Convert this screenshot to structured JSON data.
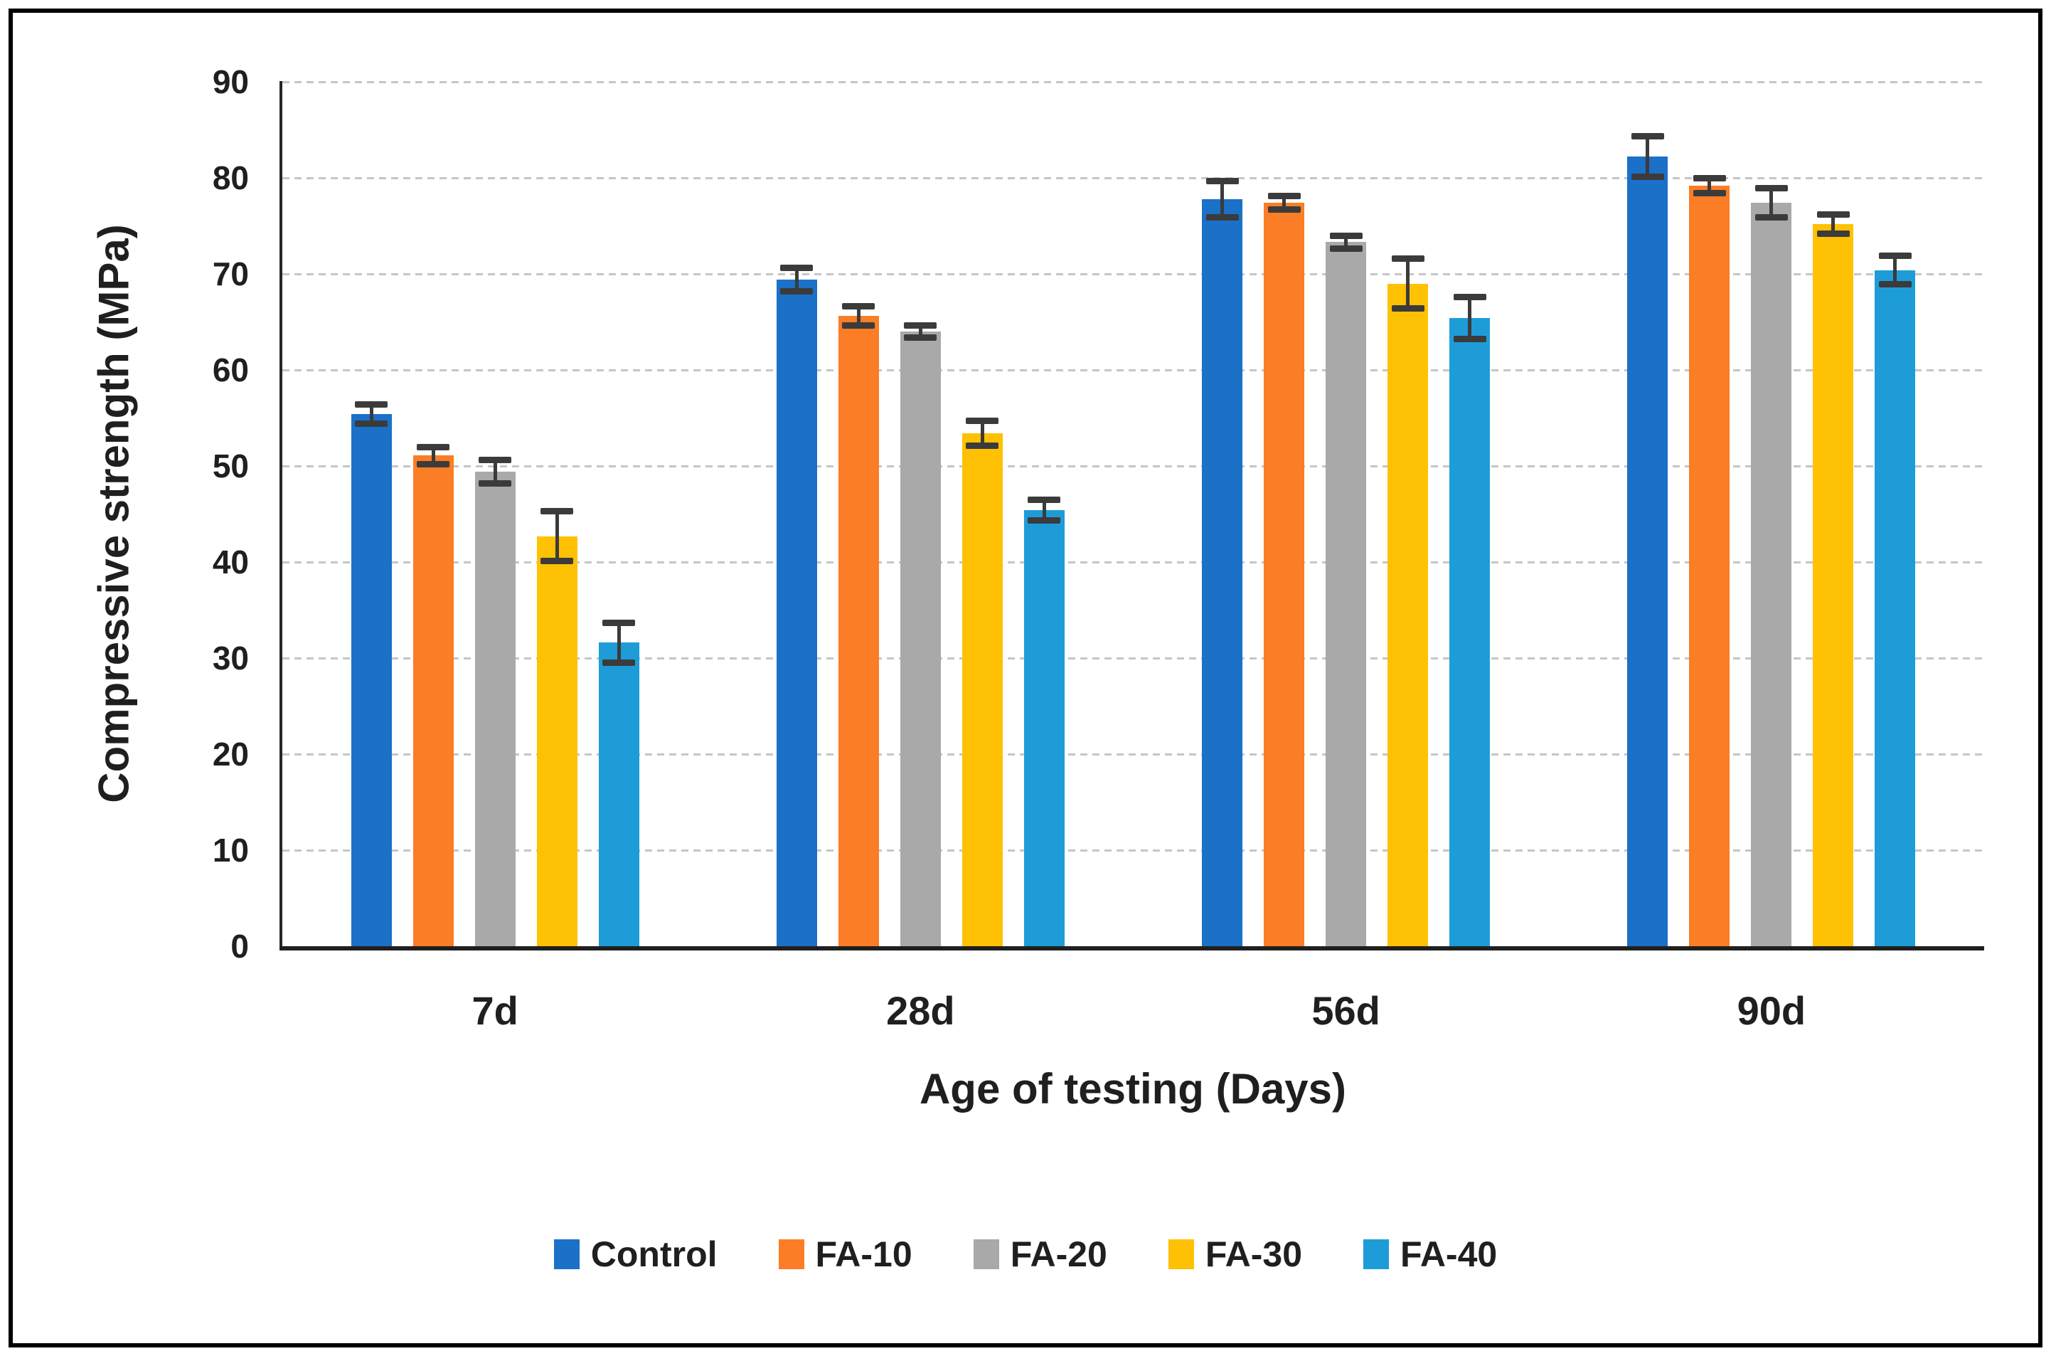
{
  "figure": {
    "y_axis_title": "Compressive strength (MPa)",
    "x_axis_title": "Age of testing (Days)",
    "y_tick_labels": [
      "0",
      "10",
      "20",
      "30",
      "40",
      "50",
      "60",
      "70",
      "80",
      "90"
    ]
  },
  "chart_data": {
    "type": "bar",
    "title": "",
    "xlabel": "Age of testing (Days)",
    "ylabel": "Compressive strength (MPa)",
    "ylim": [
      0,
      90
    ],
    "ytick_step": 10,
    "grid": "horizontal-dashed",
    "legend_position": "bottom",
    "categories": [
      "7d",
      "28d",
      "56d",
      "90d"
    ],
    "series": [
      {
        "name": "Control",
        "color": "#1B70C8",
        "pattern": "solid",
        "values": [
          55.4,
          69.4,
          77.8,
          82.2
        ],
        "errors": [
          1.0,
          1.2,
          1.9,
          2.1
        ]
      },
      {
        "name": "FA-10",
        "color": "#FB7D25",
        "pattern": "solid",
        "values": [
          51.1,
          65.6,
          77.4,
          79.2
        ],
        "errors": [
          0.9,
          1.0,
          0.7,
          0.8
        ]
      },
      {
        "name": "FA-20",
        "color": "#A9A9A9",
        "pattern": "dotted",
        "values": [
          49.4,
          64.0,
          73.3,
          77.4
        ],
        "errors": [
          1.2,
          0.6,
          0.7,
          1.5
        ]
      },
      {
        "name": "FA-30",
        "color": "#FFC103",
        "pattern": "solid",
        "values": [
          42.7,
          53.4,
          69.0,
          75.2
        ],
        "errors": [
          2.6,
          1.3,
          2.6,
          1.0
        ]
      },
      {
        "name": "FA-40",
        "color": "#1E9CD8",
        "pattern": "solid",
        "values": [
          31.6,
          45.4,
          65.4,
          70.4
        ],
        "errors": [
          2.1,
          1.1,
          2.2,
          1.5
        ]
      }
    ],
    "error_bar_color": "#3B3B3B",
    "gridline_color": "#C6C6C6",
    "axis_color": "#1F1F1F"
  }
}
